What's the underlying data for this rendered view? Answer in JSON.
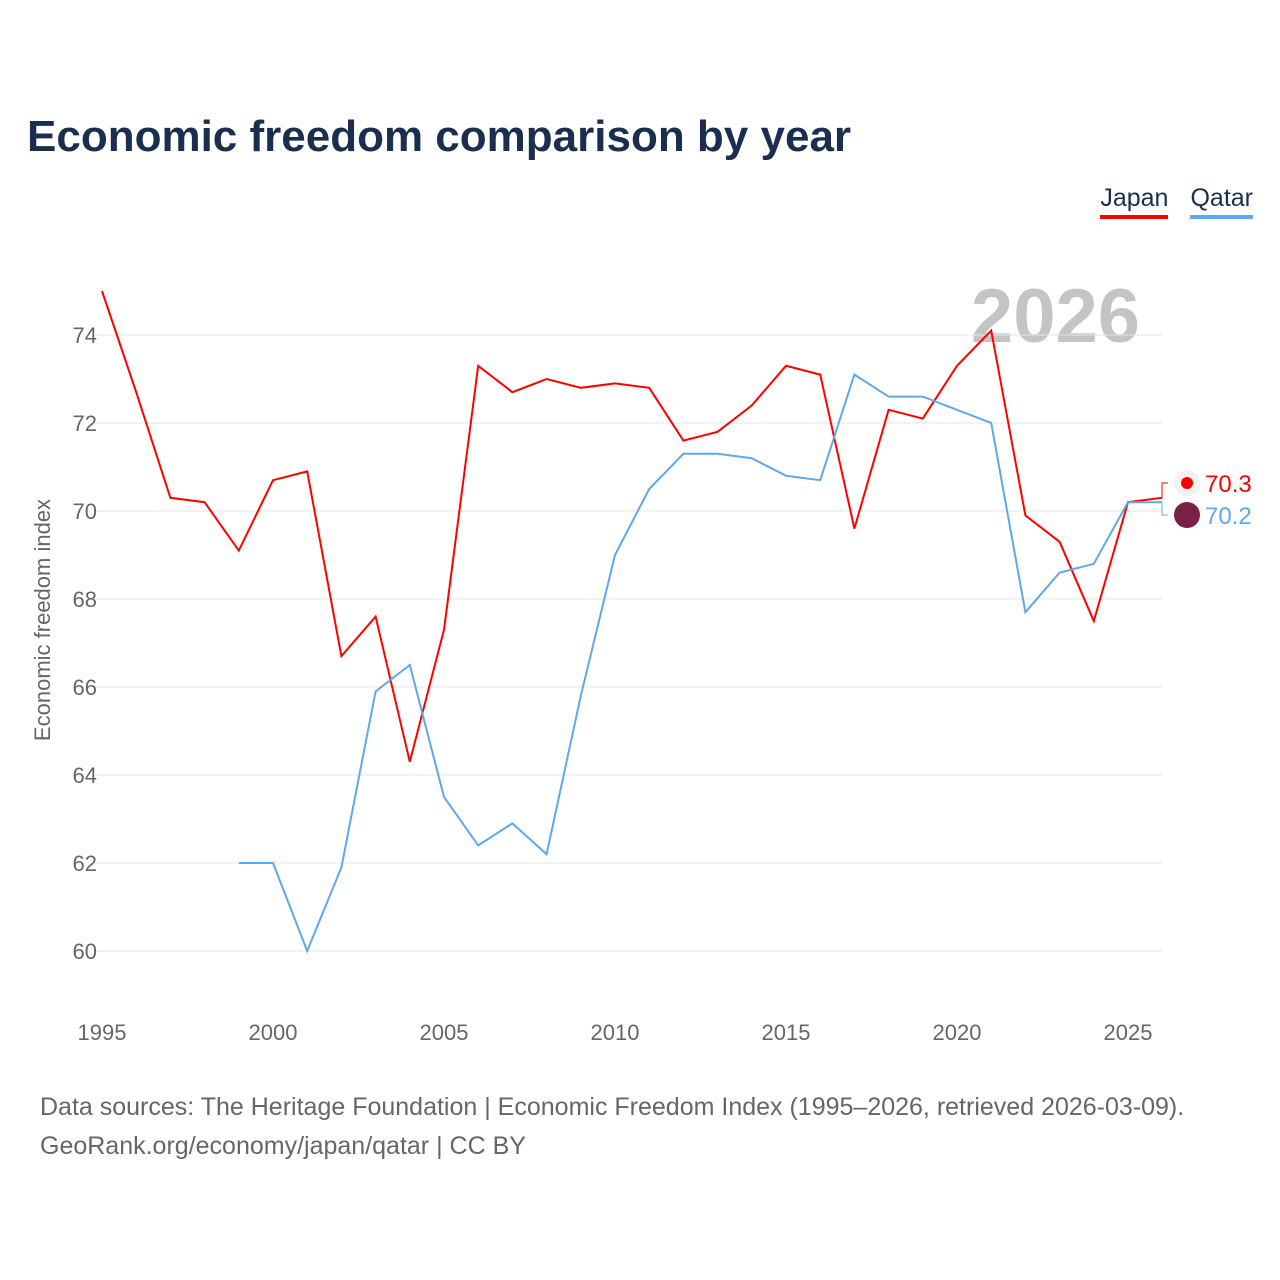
{
  "title": "Economic freedom comparison by year",
  "footer": {
    "line1": "Data sources: The Heritage Foundation | Economic Freedom Index (1995–2026, retrieved 2026-03-09).",
    "line2": "GeoRank.org/economy/japan/qatar | CC BY"
  },
  "chart_data": {
    "type": "line",
    "title": "Economic freedom comparison by year",
    "xlabel": "",
    "ylabel": "Economic freedom index",
    "year_label": "2026",
    "xlim": [
      1995,
      2026
    ],
    "ylim": [
      59,
      75
    ],
    "xticks": [
      1995,
      2000,
      2005,
      2010,
      2015,
      2020,
      2025
    ],
    "yticks": [
      60,
      62,
      64,
      66,
      68,
      70,
      72,
      74
    ],
    "legend_position": "top-right",
    "series": [
      {
        "name": "Japan",
        "color": "#ff0000",
        "end_label": "70.3",
        "x": [
          1995,
          1996,
          1997,
          1998,
          1999,
          2000,
          2001,
          2002,
          2003,
          2004,
          2005,
          2006,
          2007,
          2008,
          2009,
          2010,
          2011,
          2012,
          2013,
          2014,
          2015,
          2016,
          2017,
          2018,
          2019,
          2020,
          2021,
          2022,
          2023,
          2024,
          2025,
          2026
        ],
        "values": [
          75.0,
          72.7,
          70.3,
          70.2,
          69.1,
          70.7,
          70.9,
          66.7,
          67.6,
          64.3,
          67.3,
          73.3,
          72.7,
          73.0,
          72.8,
          72.9,
          72.8,
          71.6,
          71.8,
          72.4,
          73.3,
          73.1,
          69.6,
          72.3,
          72.1,
          73.3,
          74.1,
          69.9,
          69.3,
          67.5,
          70.2,
          70.3
        ]
      },
      {
        "name": "Qatar",
        "color": "#5fa8ec",
        "end_label": "70.2",
        "x": [
          1999,
          2000,
          2001,
          2002,
          2003,
          2004,
          2005,
          2006,
          2007,
          2008,
          2009,
          2010,
          2011,
          2012,
          2013,
          2014,
          2015,
          2016,
          2017,
          2018,
          2019,
          2020,
          2021,
          2022,
          2023,
          2024,
          2025,
          2026
        ],
        "values": [
          62.0,
          62.0,
          60.0,
          61.9,
          65.9,
          66.5,
          63.5,
          62.4,
          62.9,
          62.2,
          65.8,
          69.0,
          70.5,
          71.3,
          71.3,
          71.2,
          70.8,
          70.7,
          73.1,
          72.6,
          72.6,
          72.3,
          72.0,
          67.7,
          68.6,
          68.8,
          70.2,
          70.2
        ]
      }
    ]
  }
}
